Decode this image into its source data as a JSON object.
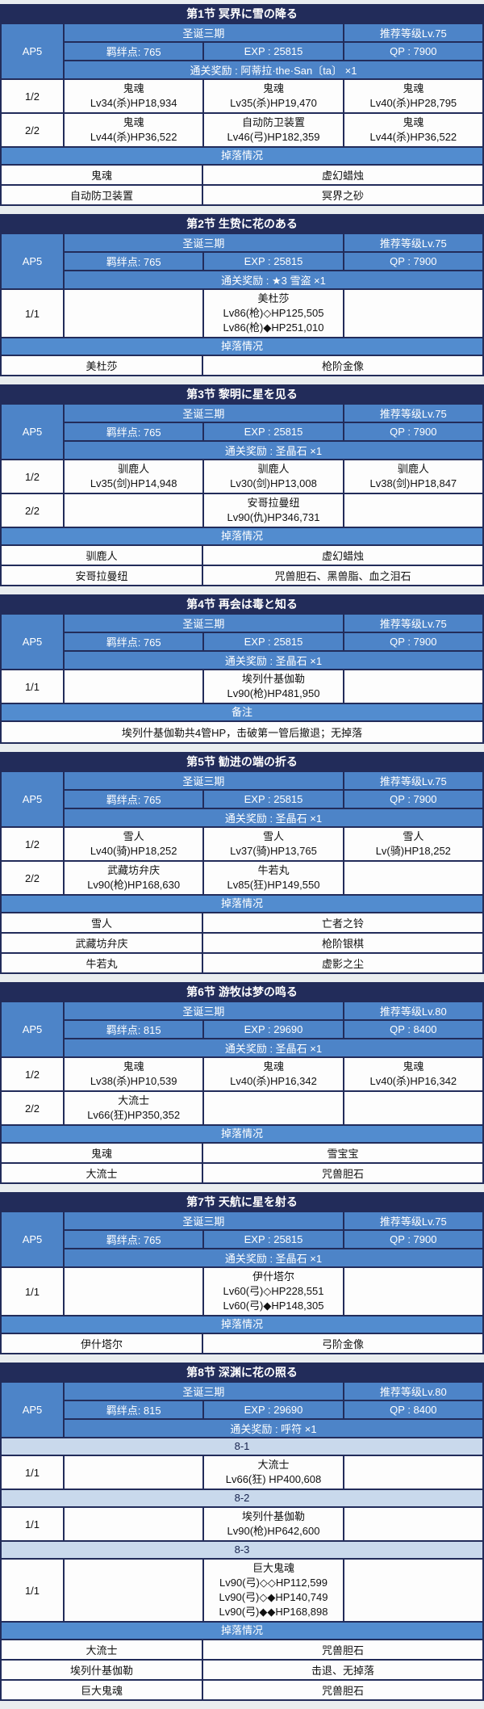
{
  "palette": {
    "navy": "#222c5a",
    "info_blue": "#4d84c8",
    "bar_blue": "#528ccf",
    "subheader_blue": "#c9d9ec",
    "row_white": "#fdfdfd",
    "page_bg": "#e9edef"
  },
  "sections": [
    {
      "title": "第1节 冥界に雪の降る",
      "ap": "AP5",
      "event": "圣诞三期",
      "recommend": "推荐等级Lv.75",
      "bond": "羁绊点: 765",
      "exp": "EXP : 25815",
      "qp": "QP : 7900",
      "reward": "通关奖励 : 阿蒂拉·the·San〔ta〕 ×1",
      "battle_rows": [
        {
          "wave": "1/2",
          "cells": [
            [
              "鬼魂",
              "Lv34(杀)HP18,934"
            ],
            [
              "鬼魂",
              "Lv35(杀)HP19,470"
            ],
            [
              "鬼魂",
              "Lv40(杀)HP28,795"
            ]
          ]
        },
        {
          "wave": "2/2",
          "cells": [
            [
              "鬼魂",
              "Lv44(杀)HP36,522"
            ],
            [
              "自动防卫装置",
              "Lv46(弓)HP182,359"
            ],
            [
              "鬼魂",
              "Lv44(杀)HP36,522"
            ]
          ]
        }
      ],
      "drops_label": "掉落情况",
      "drops": [
        [
          "鬼魂",
          "虚幻蜡烛"
        ],
        [
          "自动防卫装置",
          "冥界之砂"
        ]
      ]
    },
    {
      "title": "第2节 生贽に花のある",
      "ap": "AP5",
      "event": "圣诞三期",
      "recommend": "推荐等级Lv.75",
      "bond": "羁绊点: 765",
      "exp": "EXP : 25815",
      "qp": "QP : 7900",
      "reward": "通关奖励 : ★3 雪盗 ×1",
      "battle_rows": [
        {
          "wave": "1/1",
          "cells": [
            [],
            [
              "美杜莎",
              "Lv86(枪)◇HP125,505",
              "Lv86(枪)◆HP251,010"
            ],
            []
          ]
        }
      ],
      "drops_label": "掉落情况",
      "drops": [
        [
          "美杜莎",
          "枪阶金像"
        ]
      ]
    },
    {
      "title": "第3节 黎明に星を见る",
      "ap": "AP5",
      "event": "圣诞三期",
      "recommend": "推荐等级Lv.75",
      "bond": "羁绊点: 765",
      "exp": "EXP : 25815",
      "qp": "QP : 7900",
      "reward": "通关奖励 : 圣晶石 ×1",
      "battle_rows": [
        {
          "wave": "1/2",
          "cells": [
            [
              "驯鹿人",
              "Lv35(剑)HP14,948"
            ],
            [
              "驯鹿人",
              "Lv30(剑)HP13,008"
            ],
            [
              "驯鹿人",
              "Lv38(剑)HP18,847"
            ]
          ]
        },
        {
          "wave": "2/2",
          "cells": [
            [],
            [
              "安哥拉曼纽",
              "Lv90(仇)HP346,731"
            ],
            []
          ]
        }
      ],
      "drops_label": "掉落情况",
      "drops": [
        [
          "驯鹿人",
          "虚幻蜡烛"
        ],
        [
          "安哥拉曼纽",
          "咒兽胆石、黑兽脂、血之泪石"
        ]
      ]
    },
    {
      "title": "第4节 再会は毒と知る",
      "ap": "AP5",
      "event": "圣诞三期",
      "recommend": "推荐等级Lv.75",
      "bond": "羁绊点: 765",
      "exp": "EXP : 25815",
      "qp": "QP : 7900",
      "reward": "通关奖励 : 圣晶石 ×1",
      "battle_rows": [
        {
          "wave": "1/1",
          "cells": [
            [],
            [
              "埃列什基伽勒",
              "Lv90(枪)HP481,950"
            ],
            []
          ]
        }
      ],
      "notes_label": "备注",
      "notes": "埃列什基伽勒共4管HP，击破第一管后撤退；无掉落"
    },
    {
      "title": "第5节 勧进の端の折る",
      "ap": "AP5",
      "event": "圣诞三期",
      "recommend": "推荐等级Lv.75",
      "bond": "羁绊点: 765",
      "exp": "EXP : 25815",
      "qp": "QP : 7900",
      "reward": "通关奖励 : 圣晶石 ×1",
      "battle_rows": [
        {
          "wave": "1/2",
          "cells": [
            [
              "雪人",
              "Lv40(骑)HP18,252"
            ],
            [
              "雪人",
              "Lv37(骑)HP13,765"
            ],
            [
              "雪人",
              "Lv(骑)HP18,252"
            ]
          ]
        },
        {
          "wave": "2/2",
          "cells": [
            [
              "武藏坊弁庆",
              "Lv90(枪)HP168,630"
            ],
            [
              "牛若丸",
              "Lv85(狂)HP149,550"
            ],
            []
          ]
        }
      ],
      "drops_label": "掉落情况",
      "drops": [
        [
          "雪人",
          "亡者之铃"
        ],
        [
          "武藏坊弁庆",
          "枪阶银棋"
        ],
        [
          "牛若丸",
          "虚影之尘"
        ]
      ]
    },
    {
      "title": "第6节 游牧は梦の鸣る",
      "ap": "AP5",
      "event": "圣诞三期",
      "recommend": "推荐等级Lv.80",
      "bond": "羁绊点: 815",
      "exp": "EXP : 29690",
      "qp": "QP : 8400",
      "reward": "通关奖励 : 圣晶石 ×1",
      "battle_rows": [
        {
          "wave": "1/2",
          "cells": [
            [
              "鬼魂",
              "Lv38(杀)HP10,539"
            ],
            [
              "鬼魂",
              "Lv40(杀)HP16,342"
            ],
            [
              "鬼魂",
              "Lv40(杀)HP16,342"
            ]
          ]
        },
        {
          "wave": "2/2",
          "cells": [
            [
              "大流士",
              "Lv66(狂)HP350,352"
            ],
            [],
            []
          ]
        }
      ],
      "drops_label": "掉落情况",
      "drops": [
        [
          "鬼魂",
          "雪宝宝"
        ],
        [
          "大流士",
          "咒兽胆石"
        ]
      ]
    },
    {
      "title": "第7节 天航に星を射る",
      "ap": "AP5",
      "event": "圣诞三期",
      "recommend": "推荐等级Lv.75",
      "bond": "羁绊点: 765",
      "exp": "EXP : 25815",
      "qp": "QP : 7900",
      "reward": "通关奖励 : 圣晶石 ×1",
      "battle_rows": [
        {
          "wave": "1/1",
          "cells": [
            [],
            [
              "伊什塔尔",
              "Lv60(弓)◇HP228,551",
              "Lv60(弓)◆HP148,305"
            ],
            []
          ]
        }
      ],
      "drops_label": "掉落情况",
      "drops": [
        [
          "伊什塔尔",
          "弓阶金像"
        ]
      ]
    },
    {
      "title": "第8节 深渊に花の照る",
      "ap": "AP5",
      "event": "圣诞三期",
      "recommend": "推荐等级Lv.80",
      "bond": "羁绊点: 815",
      "exp": "EXP : 29690",
      "qp": "QP : 8400",
      "reward": "通关奖励 : 呼符 ×1",
      "battle_rows": [
        {
          "subheader": "8-1"
        },
        {
          "wave": "1/1",
          "cells": [
            [],
            [
              "大流士",
              "Lv66(狂) HP400,608"
            ],
            []
          ]
        },
        {
          "subheader": "8-2"
        },
        {
          "wave": "1/1",
          "cells": [
            [],
            [
              "埃列什基伽勒",
              "Lv90(枪)HP642,600"
            ],
            []
          ]
        },
        {
          "subheader": "8-3"
        },
        {
          "wave": "1/1",
          "cells": [
            [],
            [
              "巨大鬼魂",
              "Lv90(弓)◇◇HP112,599",
              "Lv90(弓)◇◆HP140,749",
              "Lv90(弓)◆◆HP168,898"
            ],
            []
          ]
        }
      ],
      "drops_label": "掉落情况",
      "drops": [
        [
          "大流士",
          "咒兽胆石"
        ],
        [
          "埃列什基伽勒",
          "击退、无掉落"
        ],
        [
          "巨大鬼魂",
          "咒兽胆石"
        ]
      ]
    }
  ]
}
